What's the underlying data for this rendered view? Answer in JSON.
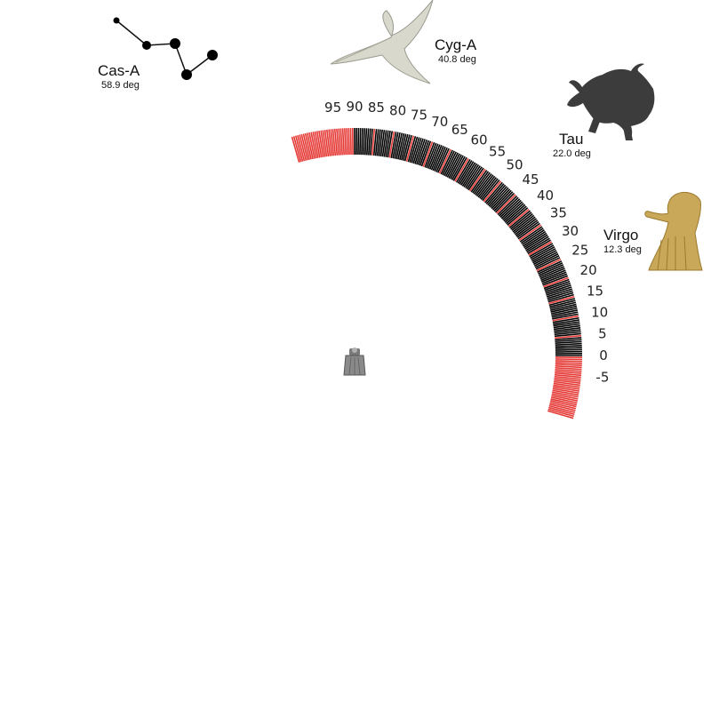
{
  "scale": {
    "min": -10,
    "max": 100,
    "major_step": 5,
    "minor_per_major": 10,
    "labels": [
      "95",
      "90",
      "85",
      "80",
      "75",
      "70",
      "65",
      "60",
      "55",
      "50",
      "45",
      "40",
      "35",
      "30",
      "25",
      "20",
      "15",
      "10",
      "5",
      "0",
      "-5"
    ],
    "label_values": [
      95,
      90,
      85,
      80,
      75,
      70,
      65,
      60,
      55,
      50,
      45,
      40,
      35,
      30,
      25,
      20,
      15,
      10,
      5,
      0,
      -5
    ],
    "below_horizon_color": "#e53935",
    "tick_color": "#000000",
    "major_tick_color": "#e53935"
  },
  "sources": [
    {
      "name": "Cas-A",
      "altitude_label": "58.9 deg",
      "altitude": 58.9,
      "icon": "cassiopeia-constellation-icon"
    },
    {
      "name": "Cyg-A",
      "altitude_label": "40.8 deg",
      "altitude": 40.8,
      "icon": "cygnus-swan-icon"
    },
    {
      "name": "Tau",
      "altitude_label": "22.0 deg",
      "altitude": 22.0,
      "icon": "taurus-bull-icon"
    },
    {
      "name": "Virgo",
      "altitude_label": "12.3 deg",
      "altitude": 12.3,
      "icon": "virgo-maiden-icon"
    }
  ],
  "center_icon": "telescope-icon",
  "colors": {
    "bull": "#3c3c3c",
    "swan": "#d8d8cc",
    "virgo": "#c9a85a",
    "telescope": "#8a8a8a"
  }
}
